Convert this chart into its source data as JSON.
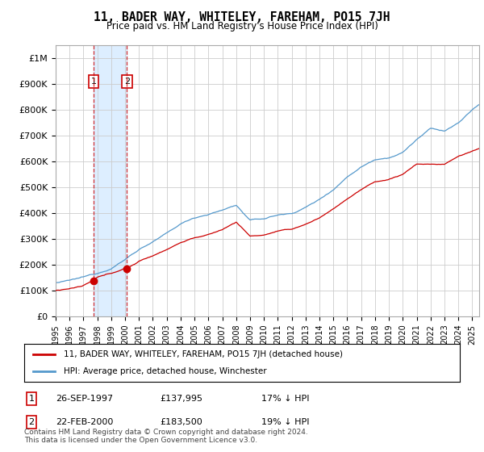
{
  "title": "11, BADER WAY, WHITELEY, FAREHAM, PO15 7JH",
  "subtitle": "Price paid vs. HM Land Registry's House Price Index (HPI)",
  "ylim": [
    0,
    1050000
  ],
  "yticks": [
    0,
    100000,
    200000,
    300000,
    400000,
    500000,
    600000,
    700000,
    800000,
    900000,
    1000000
  ],
  "ytick_labels": [
    "£0",
    "£100K",
    "£200K",
    "£300K",
    "£400K",
    "£500K",
    "£600K",
    "£700K",
    "£800K",
    "£900K",
    "£1M"
  ],
  "xlim_start": 1995.0,
  "xlim_end": 2025.5,
  "legend_label_red": "11, BADER WAY, WHITELEY, FAREHAM, PO15 7JH (detached house)",
  "legend_label_blue": "HPI: Average price, detached house, Winchester",
  "sale1_date": 1997.74,
  "sale1_price": 137995,
  "sale2_date": 2000.14,
  "sale2_price": 183500,
  "sale1_display": "26-SEP-1997",
  "sale1_price_display": "£137,995",
  "sale1_hpi": "17% ↓ HPI",
  "sale2_display": "22-FEB-2000",
  "sale2_price_display": "£183,500",
  "sale2_hpi": "19% ↓ HPI",
  "footer": "Contains HM Land Registry data © Crown copyright and database right 2024.\nThis data is licensed under the Open Government Licence v3.0.",
  "red_color": "#cc0000",
  "blue_color": "#5599cc",
  "shade_color": "#ddeeff",
  "grid_color": "#cccccc",
  "background_color": "#ffffff"
}
